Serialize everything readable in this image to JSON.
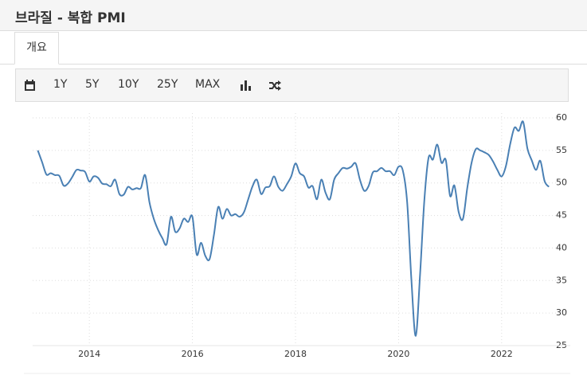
{
  "header": {
    "title": "브라질 - 복합 PMI"
  },
  "tab": "개요",
  "toolbar": [
    "1Y",
    "5Y",
    "10Y",
    "25Y",
    "MAX"
  ],
  "chart_data": {
    "type": "line",
    "x": [
      2013,
      2013.083,
      2013.167,
      2013.25,
      2013.333,
      2013.417,
      2013.5,
      2013.583,
      2013.667,
      2013.75,
      2013.833,
      2013.917,
      2014,
      2014.083,
      2014.167,
      2014.25,
      2014.333,
      2014.417,
      2014.5,
      2014.583,
      2014.667,
      2014.75,
      2014.833,
      2014.917,
      2015,
      2015.083,
      2015.167,
      2015.25,
      2015.333,
      2015.417,
      2015.5,
      2015.583,
      2015.667,
      2015.75,
      2015.833,
      2015.917,
      2016,
      2016.083,
      2016.167,
      2016.25,
      2016.333,
      2016.417,
      2016.5,
      2016.583,
      2016.667,
      2016.75,
      2016.833,
      2016.917,
      2017,
      2017.083,
      2017.167,
      2017.25,
      2017.333,
      2017.417,
      2017.5,
      2017.583,
      2017.667,
      2017.75,
      2017.833,
      2017.917,
      2018,
      2018.083,
      2018.167,
      2018.25,
      2018.333,
      2018.417,
      2018.5,
      2018.583,
      2018.667,
      2018.75,
      2018.833,
      2018.917,
      2019,
      2019.083,
      2019.167,
      2019.25,
      2019.333,
      2019.417,
      2019.5,
      2019.583,
      2019.667,
      2019.75,
      2019.833,
      2019.917,
      2020,
      2020.083,
      2020.167,
      2020.25,
      2020.333,
      2020.417,
      2020.5,
      2020.583,
      2020.667,
      2020.75,
      2020.833,
      2020.917,
      2021,
      2021.083,
      2021.167,
      2021.25,
      2021.333,
      2021.417,
      2021.5,
      2021.583,
      2021.667,
      2021.75,
      2021.833,
      2021.917,
      2022,
      2022.083,
      2022.167,
      2022.25,
      2022.333,
      2022.417,
      2022.5,
      2022.583,
      2022.667,
      2022.75,
      2022.833,
      2022.917
    ],
    "values": [
      55,
      53.2,
      51.3,
      51.5,
      51.2,
      51.1,
      49.6,
      49.9,
      50.9,
      52,
      51.9,
      51.7,
      50.2,
      51,
      50.8,
      49.9,
      49.8,
      49.5,
      50.5,
      48.3,
      48.2,
      49.4,
      49,
      49.2,
      49.2,
      51.2,
      47,
      44.5,
      42.8,
      41.5,
      40.6,
      44.8,
      42.5,
      43,
      44.5,
      44,
      44.8,
      39,
      40.8,
      38.8,
      38.3,
      42,
      46.3,
      44.5,
      46,
      45,
      45.2,
      44.8,
      45.5,
      47.5,
      49.5,
      50.5,
      48.3,
      49.3,
      49.5,
      51,
      49.4,
      48.8,
      49.8,
      51,
      53,
      51.5,
      51,
      49.3,
      49.5,
      47.5,
      50.5,
      48.5,
      47.5,
      50.5,
      51.5,
      52.3,
      52.2,
      52.5,
      53,
      50.5,
      48.8,
      49.5,
      51.6,
      51.8,
      52.3,
      51.8,
      51.8,
      51.2,
      52.5,
      51.9,
      47,
      35,
      26.5,
      35.9,
      47.3,
      53.9,
      53.6,
      55.9,
      53.1,
      53.5,
      48,
      49.6,
      45.5,
      44.5,
      49.2,
      53.1,
      55.2,
      55,
      54.7,
      54.3,
      53.3,
      52,
      51,
      52.6,
      56,
      58.5,
      58,
      59.4,
      55.3,
      53.5,
      52,
      53.4,
      50.3,
      49.4
    ],
    "color": "#4a80b4",
    "xlim": [
      2012.9,
      2023.1
    ],
    "xticks": [
      2014,
      2016,
      2018,
      2020,
      2022
    ],
    "ylim": [
      25,
      60
    ],
    "yticks": [
      25,
      30,
      35,
      40,
      45,
      50,
      55,
      60
    ],
    "grid": true
  }
}
